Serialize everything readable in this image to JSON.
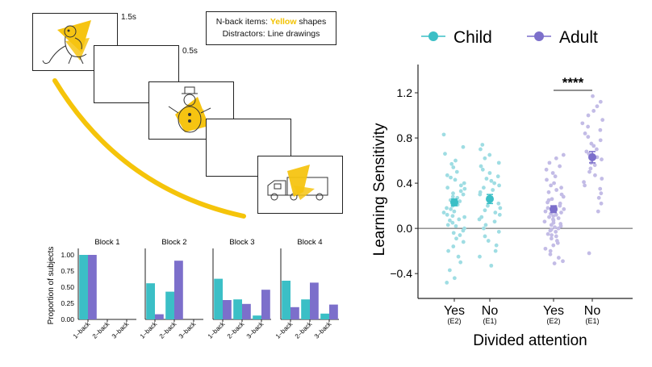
{
  "task": {
    "time_labels": [
      "1.5s",
      "0.5s"
    ],
    "legend": {
      "line1_pre": "N-back items: ",
      "line1_highlight": "Yellow",
      "line1_post": " shapes",
      "line2": "Distractors: Line drawings"
    },
    "highlight_color": "#F2C200",
    "card_icons": [
      "monkey-drawing-with-yellow-shape",
      "blank",
      "snowman-drawing-with-yellow-shape",
      "blank",
      "truck-drawing-with-yellow-shape"
    ]
  },
  "colors": {
    "child": "#3BBFC6",
    "adult": "#7C6FCB",
    "child_light": "#9FDDE3",
    "adult_light": "#C3BCE6"
  },
  "chart_data": [
    {
      "type": "bar",
      "ylabel": "Proportion of subjects",
      "categories": [
        "1–back",
        "2–back",
        "3–back"
      ],
      "yticks": [
        "0.00",
        "0.25",
        "0.50",
        "0.75",
        "1.00"
      ],
      "ylim": [
        0,
        1.05
      ],
      "facets": [
        {
          "title": "Block 1",
          "child": [
            1.0,
            0.0,
            0.0
          ],
          "adult": [
            1.0,
            0.0,
            0.0
          ]
        },
        {
          "title": "Block 2",
          "child": [
            0.56,
            0.43,
            0.0
          ],
          "adult": [
            0.08,
            0.91,
            0.0
          ]
        },
        {
          "title": "Block 3",
          "child": [
            0.63,
            0.31,
            0.06
          ],
          "adult": [
            0.3,
            0.24,
            0.46
          ]
        },
        {
          "title": "Block 4",
          "child": [
            0.6,
            0.31,
            0.09
          ],
          "adult": [
            0.19,
            0.57,
            0.23
          ]
        }
      ]
    },
    {
      "type": "scatter",
      "legend": [
        "Child",
        "Adult"
      ],
      "legend_placement": "top",
      "ylabel": "Learning Sensitivity",
      "xlabel": "Divided attention",
      "yticks": [
        "−0.4",
        "0.0",
        "0.4",
        "0.8",
        "1.2"
      ],
      "ylim": [
        -0.62,
        1.45
      ],
      "significance": "****",
      "groups": [
        {
          "label": "Yes",
          "sub": "(E2)",
          "series": "child",
          "mean": 0.23,
          "se": 0.03
        },
        {
          "label": "No",
          "sub": "(E1)",
          "series": "child",
          "mean": 0.26,
          "se": 0.04
        },
        {
          "label": "Yes",
          "sub": "(E2)",
          "series": "adult",
          "mean": 0.17,
          "se": 0.03
        },
        {
          "label": "No",
          "sub": "(E1)",
          "series": "adult",
          "mean": 0.63,
          "se": 0.05
        }
      ],
      "points": [
        [
          0.83,
          0.72,
          0.66,
          0.6,
          0.57,
          0.54,
          0.5,
          0.47,
          0.45,
          0.43,
          0.4,
          0.38,
          0.36,
          0.35,
          0.33,
          0.31,
          0.3,
          0.28,
          0.27,
          0.25,
          0.24,
          0.22,
          0.21,
          0.2,
          0.18,
          0.17,
          0.15,
          0.14,
          0.12,
          0.11,
          0.1,
          0.08,
          0.07,
          0.05,
          0.03,
          0.02,
          0.0,
          -0.02,
          -0.04,
          -0.06,
          -0.09,
          -0.12,
          -0.16,
          -0.2,
          -0.25,
          -0.3,
          -0.37,
          -0.44,
          -0.48
        ],
        [
          0.74,
          0.7,
          0.65,
          0.62,
          0.58,
          0.55,
          0.52,
          0.49,
          0.46,
          0.44,
          0.42,
          0.4,
          0.38,
          0.36,
          0.34,
          0.32,
          0.3,
          0.28,
          0.26,
          0.24,
          0.22,
          0.2,
          0.18,
          0.16,
          0.14,
          0.12,
          0.1,
          0.08,
          0.06,
          0.03,
          0.0,
          -0.03,
          -0.07,
          -0.11,
          -0.15,
          -0.2,
          -0.25,
          -0.33
        ],
        [
          0.65,
          0.62,
          0.58,
          0.55,
          0.52,
          0.49,
          0.46,
          0.43,
          0.4,
          0.38,
          0.36,
          0.34,
          0.32,
          0.3,
          0.28,
          0.26,
          0.25,
          0.23,
          0.22,
          0.2,
          0.19,
          0.18,
          0.17,
          0.15,
          0.14,
          0.13,
          0.12,
          0.11,
          0.1,
          0.09,
          0.08,
          0.07,
          0.06,
          0.05,
          0.04,
          0.03,
          0.02,
          0.01,
          0.0,
          -0.01,
          -0.02,
          -0.03,
          -0.05,
          -0.06,
          -0.07,
          -0.09,
          -0.11,
          -0.13,
          -0.15,
          -0.18,
          -0.2,
          -0.23,
          -0.26,
          -0.29,
          -0.31
        ],
        [
          1.17,
          1.12,
          1.08,
          1.04,
          1.0,
          0.96,
          0.93,
          0.9,
          0.87,
          0.84,
          0.81,
          0.78,
          0.75,
          0.73,
          0.7,
          0.68,
          0.66,
          0.63,
          0.61,
          0.58,
          0.56,
          0.53,
          0.5,
          0.47,
          0.44,
          0.41,
          0.38,
          0.35,
          0.31,
          0.27,
          0.22,
          0.15,
          -0.22
        ]
      ]
    }
  ]
}
